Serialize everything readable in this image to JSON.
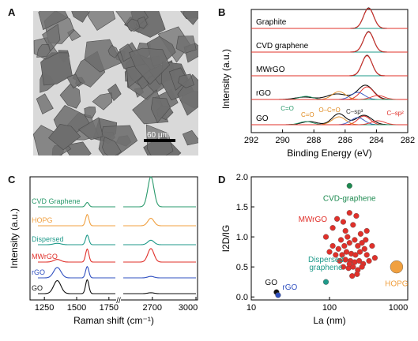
{
  "panels": {
    "a": "A",
    "b": "B",
    "c": "C",
    "d": "D"
  },
  "panel_a": {
    "scale_label": "60 μm"
  },
  "colors": {
    "green": "#2a9a6c",
    "red": "#e0302a",
    "orange": "#f0a040",
    "blue": "#3050c0",
    "teal": "#1f9a8a",
    "black": "#111111",
    "darkgreen": "#1d8a50"
  },
  "chart_data": [
    {
      "id": "B",
      "type": "line",
      "xlabel": "Binding Energy (eV)",
      "ylabel": "Intensity (a.u.)",
      "xlim": [
        292,
        282
      ],
      "x_ticks": [
        "292",
        "290",
        "288",
        "286",
        "284",
        "282"
      ],
      "series": [
        {
          "name": "Graphite",
          "peak": 284.5
        },
        {
          "name": "CVD graphene",
          "peak": 284.5
        },
        {
          "name": "MWrGO",
          "peak": 284.6
        },
        {
          "name": "rGO",
          "peak": 285.0
        },
        {
          "name": "GO",
          "peak": 286.3
        }
      ],
      "annotations": [
        "C=O",
        "C=O",
        "O–C=O",
        "C–sp³",
        "C–sp²"
      ]
    },
    {
      "id": "C",
      "type": "line",
      "xlabel": "Raman shift (cm⁻¹)",
      "ylabel": "Intensity (a.u.)",
      "x_ticks": [
        "1250",
        "1500",
        "1750",
        "2700",
        "3000"
      ],
      "series": [
        {
          "name": "CVD Graphene",
          "d": 0,
          "g": 0.25,
          "twod": 1.0
        },
        {
          "name": "HOPG",
          "d": 0,
          "g": 0.65,
          "twod": 0.25
        },
        {
          "name": "Dispersed",
          "d": 0.08,
          "g": 0.55,
          "twod": 0.15
        },
        {
          "name": "MWrGO",
          "d": 0.15,
          "g": 0.75,
          "twod": 0.45
        },
        {
          "name": "rGO",
          "d": 0.6,
          "g": 0.65,
          "twod": 0.05
        },
        {
          "name": "GO",
          "d": 0.75,
          "g": 0.8,
          "twod": 0.03
        }
      ]
    },
    {
      "id": "D",
      "type": "scatter",
      "xlabel": "La (nm)",
      "ylabel": "I2D/IG",
      "x_scale": "log",
      "xlim": [
        10,
        1000
      ],
      "ylim": [
        -0.05,
        2.0
      ],
      "x_ticks": [
        "10",
        "100",
        "1000"
      ],
      "y_ticks": [
        "0.0",
        "0.5",
        "1.0",
        "1.5",
        "2.0"
      ],
      "labels": {
        "cvd": "CVD-graphene",
        "mwrgo": "MWrGO",
        "dispersed": [
          "Dispersed",
          "graphene"
        ],
        "hopg": "HOPG",
        "go": "GO",
        "rgo": "rGO"
      },
      "groups": [
        {
          "name": "CVD-graphene",
          "points": [
            [
              180,
              1.85
            ]
          ]
        },
        {
          "name": "Dispersed graphene",
          "points": [
            [
              90,
              0.25
            ]
          ]
        },
        {
          "name": "HOPG",
          "points": [
            [
              720,
              0.5
            ]
          ]
        },
        {
          "name": "GO",
          "points": [
            [
              21,
              0.08
            ]
          ]
        },
        {
          "name": "rGO",
          "points": [
            [
              22,
              0.03
            ]
          ]
        },
        {
          "name": "MWrGO",
          "points": [
            [
              90,
              1.0
            ],
            [
              110,
              1.15
            ],
            [
              125,
              1.3
            ],
            [
              150,
              1.25
            ],
            [
              180,
              1.4
            ],
            [
              220,
              1.35
            ],
            [
              160,
              1.1
            ],
            [
              200,
              1.2
            ],
            [
              250,
              1.05
            ],
            [
              300,
              1.1
            ],
            [
              140,
              0.95
            ],
            [
              170,
              1.0
            ],
            [
              210,
              0.95
            ],
            [
              260,
              0.9
            ],
            [
              110,
              0.85
            ],
            [
              130,
              0.8
            ],
            [
              155,
              0.85
            ],
            [
              180,
              0.9
            ],
            [
              230,
              0.85
            ],
            [
              280,
              0.8
            ],
            [
              350,
              0.85
            ],
            [
              120,
              0.7
            ],
            [
              145,
              0.7
            ],
            [
              165,
              0.75
            ],
            [
              190,
              0.72
            ],
            [
              215,
              0.7
            ],
            [
              245,
              0.75
            ],
            [
              300,
              0.7
            ],
            [
              380,
              0.65
            ],
            [
              135,
              0.6
            ],
            [
              160,
              0.62
            ],
            [
              185,
              0.6
            ],
            [
              210,
              0.58
            ],
            [
              240,
              0.6
            ],
            [
              270,
              0.55
            ],
            [
              320,
              0.6
            ],
            [
              150,
              0.5
            ],
            [
              175,
              0.48
            ],
            [
              200,
              0.5
            ],
            [
              230,
              0.45
            ],
            [
              260,
              0.5
            ],
            [
              195,
              0.35
            ],
            [
              225,
              0.38
            ],
            [
              180,
              0.55
            ],
            [
              290,
              0.95
            ],
            [
              100,
              0.75
            ]
          ]
        }
      ]
    }
  ]
}
